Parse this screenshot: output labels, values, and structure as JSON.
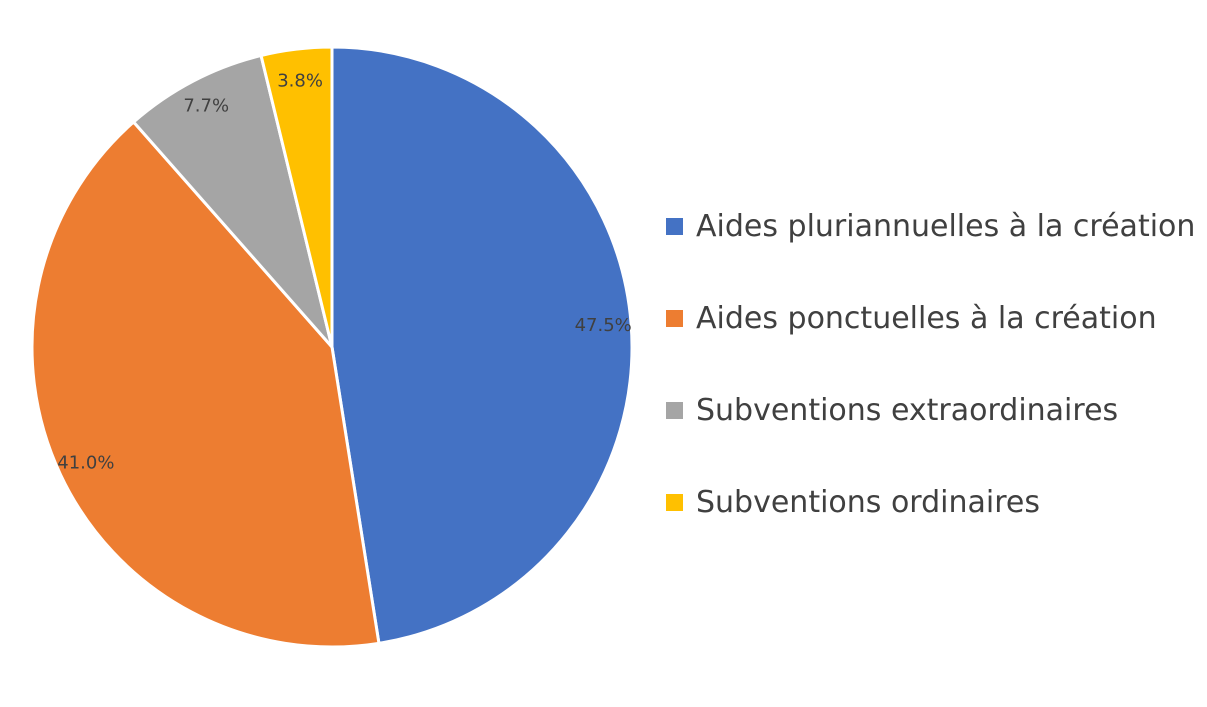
{
  "chart_data": {
    "type": "pie",
    "slices": [
      {
        "label": "Aides pluriannuelles à la création",
        "value": 47.5,
        "display": "47.5%",
        "color": "#4472C4"
      },
      {
        "label": "Aides ponctuelles à la création",
        "value": 41.0,
        "display": "41.0%",
        "color": "#ED7D31"
      },
      {
        "label": "Subventions extraordinaires",
        "value": 7.7,
        "display": "7.7%",
        "color": "#A5A5A5"
      },
      {
        "label": "Subventions ordinaires",
        "value": 3.8,
        "display": "3.8%",
        "color": "#FFC000"
      }
    ],
    "start_angle": "12 o'clock",
    "direction": "clockwise",
    "legend_position": "right"
  }
}
